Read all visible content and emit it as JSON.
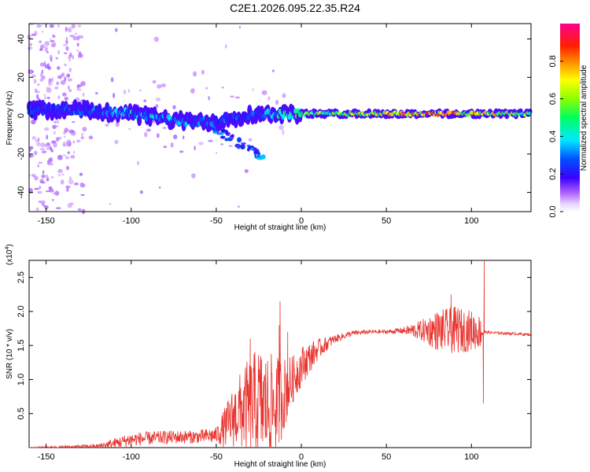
{
  "title": "C2E1.2026.095.22.35.R24",
  "spectrogram": {
    "type": "heatmap",
    "xlabel": "Height of straight line (km)",
    "ylabel": "Frequency (Hz)",
    "xlim": [
      -160,
      135
    ],
    "ylim": [
      -50,
      48
    ],
    "xticks": [
      -150,
      -100,
      -50,
      0,
      50,
      100
    ],
    "yticks": [
      -40,
      -20,
      0,
      20,
      40
    ],
    "colorbar": {
      "label": "Normalized spectral amplitude",
      "range": [
        0,
        1
      ],
      "ticks": [
        0.0,
        0.2,
        0.4,
        0.6,
        0.8
      ],
      "tick_labels": [
        "0.0",
        "0.2",
        "0.4",
        "0.6",
        "0.8"
      ]
    },
    "ridge": {
      "x": [
        -160,
        -130,
        -100,
        -70,
        -50,
        -35,
        -25,
        -15,
        0,
        20,
        60,
        90,
        110,
        135
      ],
      "freq": [
        3,
        3,
        1,
        -3,
        -3,
        0,
        1,
        1,
        1,
        1,
        1,
        1,
        1,
        1
      ],
      "amplitude": [
        0.25,
        0.3,
        0.4,
        0.35,
        0.3,
        0.3,
        0.35,
        0.45,
        0.6,
        0.65,
        0.85,
        0.85,
        0.75,
        0.6
      ]
    }
  },
  "snr": {
    "type": "line",
    "xlabel": "Height of straight line (km)",
    "ylabel": "SNR (10 * v/v)",
    "scale_label": "(x10",
    "scale_exp": "4",
    "scale_close": ")",
    "xlim": [
      -160,
      135
    ],
    "ylim": [
      0,
      2.75
    ],
    "xticks": [
      -150,
      -100,
      -50,
      0,
      50,
      100
    ],
    "yticks": [
      0.5,
      1.0,
      1.5,
      2.0,
      2.5
    ],
    "ytick_labels": [
      "0.5",
      "1.0",
      "1.5",
      "2.0",
      "2.5"
    ],
    "color": "#e8322d",
    "envelope": {
      "x": [
        -160,
        -120,
        -110,
        -100,
        -80,
        -60,
        -50,
        -45,
        -40,
        -35,
        -30,
        -25,
        -20,
        -15,
        -10,
        -5,
        0,
        10,
        20,
        30,
        40,
        50,
        60,
        70,
        80,
        90,
        100,
        105,
        107,
        108,
        110,
        120,
        135
      ],
      "mean": [
        0.0,
        0.02,
        0.06,
        0.12,
        0.15,
        0.16,
        0.18,
        0.3,
        0.45,
        0.55,
        0.6,
        0.65,
        0.6,
        0.6,
        0.8,
        1.0,
        1.2,
        1.45,
        1.6,
        1.68,
        1.7,
        1.7,
        1.72,
        1.72,
        1.72,
        1.72,
        1.72,
        1.7,
        1.7,
        1.7,
        1.69,
        1.68,
        1.66
      ],
      "spread": [
        0.01,
        0.03,
        0.08,
        0.1,
        0.1,
        0.1,
        0.12,
        0.3,
        0.45,
        0.6,
        0.75,
        0.85,
        0.8,
        0.75,
        0.55,
        0.35,
        0.3,
        0.15,
        0.06,
        0.04,
        0.03,
        0.03,
        0.05,
        0.15,
        0.3,
        0.35,
        0.3,
        0.25,
        0.1,
        0.02,
        0.02,
        0.02,
        0.02
      ]
    },
    "spikes": [
      {
        "x": -12.5,
        "y": 2.15
      },
      {
        "x": -30,
        "y": 1.6
      },
      {
        "x": -13,
        "y": 1.8
      },
      {
        "x": -8,
        "y": 1.7
      },
      {
        "x": 88,
        "y": 2.25
      },
      {
        "x": 92,
        "y": 2.05
      },
      {
        "x": 107,
        "y": 0.65
      },
      {
        "x": 107.5,
        "y": 2.75
      }
    ]
  }
}
